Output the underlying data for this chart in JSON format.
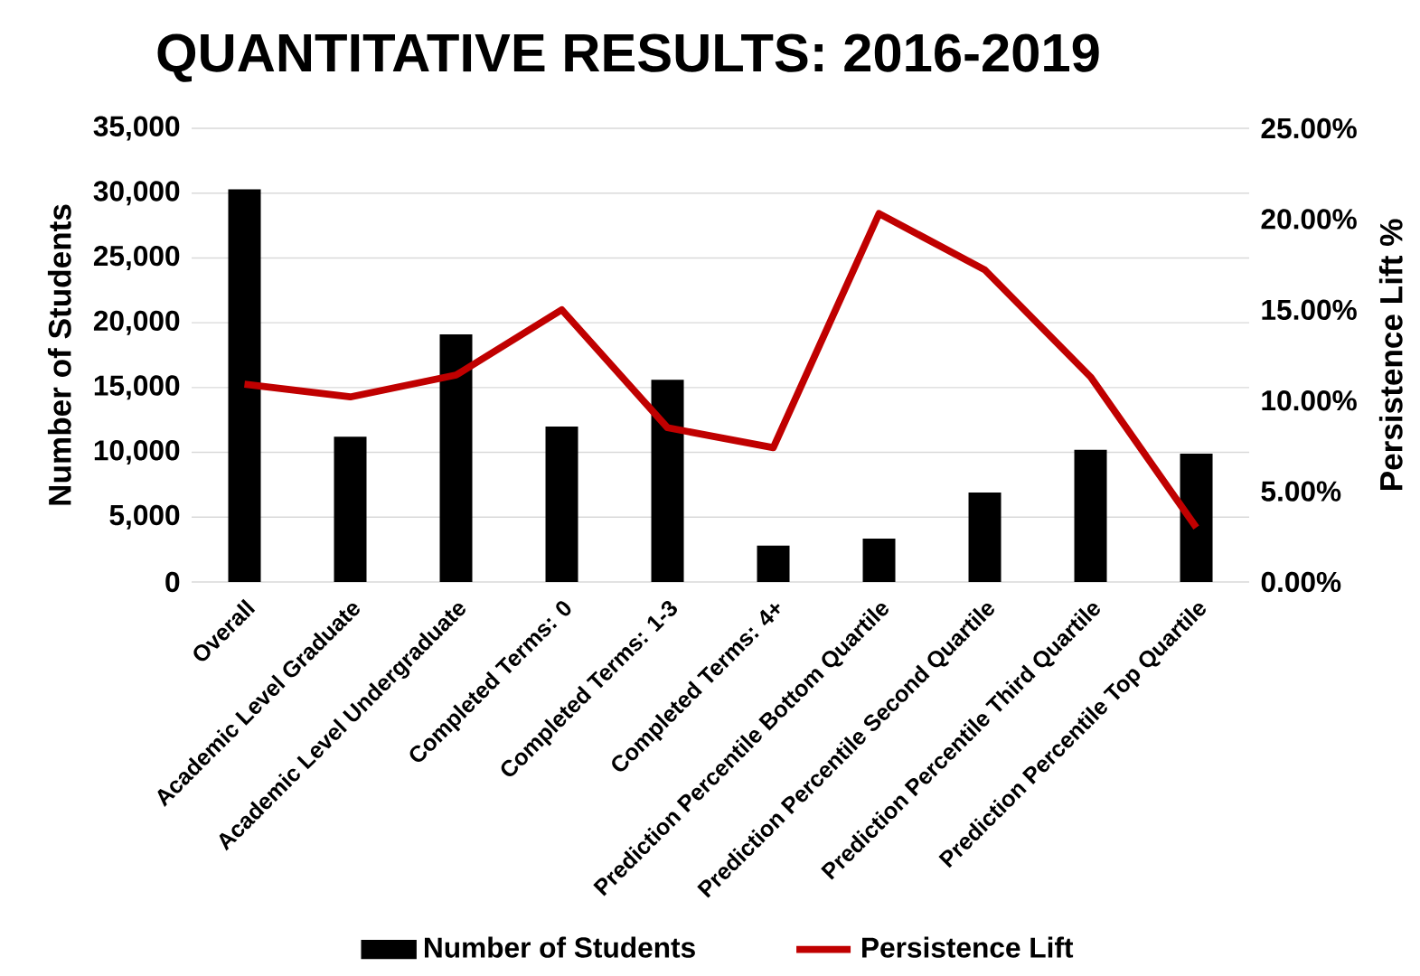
{
  "chart_data": {
    "type": "bar",
    "title": "QUANTITATIVE RESULTS: 2016-2019",
    "ylabel": "Number of Students",
    "y2label": "Persistence Lift %",
    "categories": [
      "Overall",
      "Academic Level Graduate",
      "Academic Level Undergraduate",
      "Completed Terms: 0",
      "Completed Terms: 1-3",
      "Completed Terms: 4+",
      "Prediction Percentile Bottom Quartile",
      "Prediction Percentile Second Quartile",
      "Prediction Percentile Third Quartile",
      "Prediction Percentile Top Quartile"
    ],
    "series": [
      {
        "name": "Number of Students",
        "color": "#000000",
        "values": [
          30300,
          11200,
          19100,
          12000,
          15600,
          2800,
          3350,
          6900,
          10200,
          9900
        ]
      },
      {
        "name": "Persistence Lift",
        "type": "line",
        "axis": "y2",
        "color": "#c00000",
        "values": [
          10.9,
          10.2,
          11.4,
          15.0,
          8.5,
          7.4,
          20.3,
          17.2,
          11.3,
          3.0
        ]
      }
    ],
    "ylim": [
      0,
      35000
    ],
    "yticks": [
      {
        "value": 0,
        "label": "0"
      },
      {
        "value": 5000,
        "label": "5,000"
      },
      {
        "value": 10000,
        "label": "10,000"
      },
      {
        "value": 15000,
        "label": "15,000"
      },
      {
        "value": 20000,
        "label": "20,000"
      },
      {
        "value": 25000,
        "label": "25,000"
      },
      {
        "value": 30000,
        "label": "30,000"
      },
      {
        "value": 35000,
        "label": "35,000"
      }
    ],
    "y2lim": [
      0,
      25
    ],
    "y2ticks": [
      {
        "value": 0,
        "label": "0.00%"
      },
      {
        "value": 5,
        "label": "5.00%"
      },
      {
        "value": 10,
        "label": "10.00%"
      },
      {
        "value": 15,
        "label": "15.00%"
      },
      {
        "value": 20,
        "label": "20.00%"
      },
      {
        "value": 25,
        "label": "25.00%"
      }
    ],
    "grid": "y",
    "legend": "bottom"
  }
}
